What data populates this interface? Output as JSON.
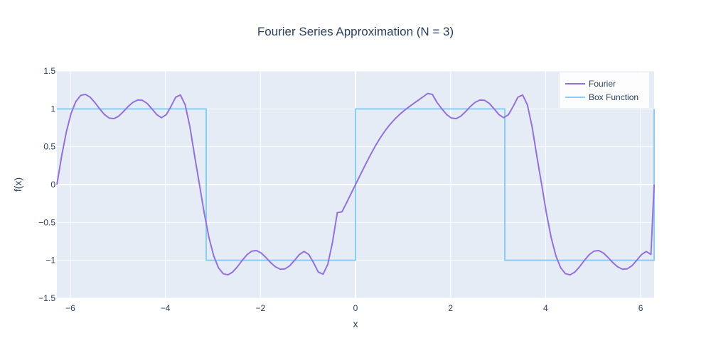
{
  "chart_data": {
    "type": "line",
    "title": "Fourier Series Approximation (N = 3)",
    "xlabel": "x",
    "ylabel": "f(x)",
    "xlim": [
      -6.2832,
      6.2832
    ],
    "ylim": [
      -1.5,
      1.5
    ],
    "x_ticks": [
      -6,
      -4,
      -2,
      0,
      2,
      4,
      6
    ],
    "x_tick_labels": [
      "−6",
      "−4",
      "−2",
      "0",
      "2",
      "4",
      "6"
    ],
    "y_ticks": [
      -1.5,
      -1,
      -0.5,
      0,
      0.5,
      1,
      1.5
    ],
    "y_tick_labels": [
      "−1.5",
      "−1",
      "−0.5",
      "0",
      "0.5",
      "1",
      "1.5"
    ],
    "grid": true,
    "legend_position": "top-right",
    "series": [
      {
        "name": "Fourier",
        "color": "#9370db",
        "x": [
          -6.2832,
          -6.1832,
          -6.0832,
          -5.9832,
          -5.8832,
          -5.7832,
          -5.6832,
          -5.5832,
          -5.4832,
          -5.3832,
          -5.2832,
          -5.1832,
          -5.0832,
          -4.9832,
          -4.8832,
          -4.7832,
          -4.6832,
          -4.5832,
          -4.4832,
          -4.3832,
          -4.2832,
          -4.1832,
          -4.0832,
          -3.9832,
          -3.8832,
          -3.7832,
          -3.6832,
          -3.5832,
          -3.4832,
          -3.3832,
          -3.2832,
          -3.1832,
          -3.0832,
          -2.9832,
          -2.8832,
          -2.7832,
          -2.6832,
          -2.5832,
          -2.4832,
          -2.3832,
          -2.2832,
          -2.1832,
          -2.0832,
          -1.9832,
          -1.8832,
          -1.7832,
          -1.6832,
          -1.5832,
          -1.4832,
          -1.3832,
          -1.2832,
          -1.1832,
          -1.0832,
          -0.9832,
          -0.8832,
          -0.7832,
          -0.6832,
          -0.5832,
          -0.4832,
          -0.3832,
          -0.2832,
          -0.1832,
          -0.0832,
          0.0168,
          0.1168,
          0.2168,
          0.3168,
          0.4168,
          0.5168,
          0.6168,
          0.7168,
          0.8168,
          0.9168,
          1.0168,
          1.1168,
          1.2168,
          1.3168,
          1.4168,
          1.5168,
          1.6168,
          1.7168,
          1.8168,
          1.9168,
          2.0168,
          2.1168,
          2.2168,
          2.3168,
          2.4168,
          2.5168,
          2.6168,
          2.7168,
          2.8168,
          2.9168,
          3.0168,
          3.1168,
          3.2168,
          3.3168,
          3.4168,
          3.5168,
          3.6168,
          3.7168,
          3.8168,
          3.9168,
          4.0168,
          4.1168,
          4.2168,
          4.3168,
          4.4168,
          4.5168,
          4.6168,
          4.7168,
          4.8168,
          4.9168,
          5.0168,
          5.1168,
          5.2168,
          5.3168,
          5.4168,
          5.5168,
          5.6168,
          5.7168,
          5.8168,
          5.9168,
          6.0168,
          6.1168,
          6.2168,
          6.2832
        ],
        "y": [
          0,
          0.3756,
          0.6995,
          0.942,
          1.0978,
          1.177,
          1.1911,
          1.154,
          1.0834,
          1.0001,
          0.9256,
          0.8788,
          0.8711,
          0.9034,
          0.9639,
          1.0313,
          1.0862,
          1.1168,
          1.1129,
          1.0714,
          1.0003,
          0.9245,
          0.8831,
          0.9219,
          1.0314,
          1.1538,
          1.1836,
          1.0531,
          0.7601,
          0.371,
          0,
          -0.3756,
          -0.6995,
          -0.942,
          -1.0978,
          -1.177,
          -1.1911,
          -1.154,
          -1.0834,
          -1.0001,
          -0.9256,
          -0.8788,
          -0.8711,
          -0.9034,
          -0.9639,
          -1.0313,
          -1.0862,
          -1.1168,
          -1.1129,
          -1.0714,
          -1.0003,
          -0.9245,
          -0.8831,
          -0.9219,
          -1.0314,
          -1.1538,
          -1.1836,
          -1.0531,
          -0.7601,
          -0.371,
          -0.3584,
          -0.2341,
          -0.1058,
          0.0214,
          0.1481,
          0.2738,
          0.3956,
          0.5097,
          0.6136,
          0.7061,
          0.7872,
          0.8578,
          0.9194,
          0.9737,
          1.0226,
          1.0681,
          1.1122,
          1.1567,
          1.2033,
          1.1911,
          1.0834,
          1.0001,
          0.9256,
          0.8788,
          0.8711,
          0.9034,
          0.9639,
          1.0313,
          1.0862,
          1.1168,
          1.1129,
          1.0714,
          1.0003,
          0.9245,
          0.8831,
          0.9219,
          1.0314,
          1.1538,
          1.1836,
          1.0531,
          0.7601,
          0.371,
          0,
          -0.3756,
          -0.6995,
          -0.942,
          -1.0978,
          -1.177,
          -1.1911,
          -1.154,
          -1.0834,
          -1.0001,
          -0.9256,
          -0.8788,
          -0.8711,
          -0.9034,
          -0.9639,
          -1.0313,
          -1.0862,
          -1.1168,
          -1.1129,
          -1.0714,
          -1.0003,
          -0.9245,
          -0.8831,
          -0.9219,
          0
        ]
      },
      {
        "name": "Box Function",
        "color": "#87cefa",
        "x": [
          -6.2832,
          -3.1416,
          -3.1416,
          0,
          0,
          3.1416,
          3.1416,
          6.2832,
          6.2832
        ],
        "y": [
          1,
          1,
          -1,
          -1,
          1,
          1,
          -1,
          -1,
          1
        ]
      }
    ]
  }
}
